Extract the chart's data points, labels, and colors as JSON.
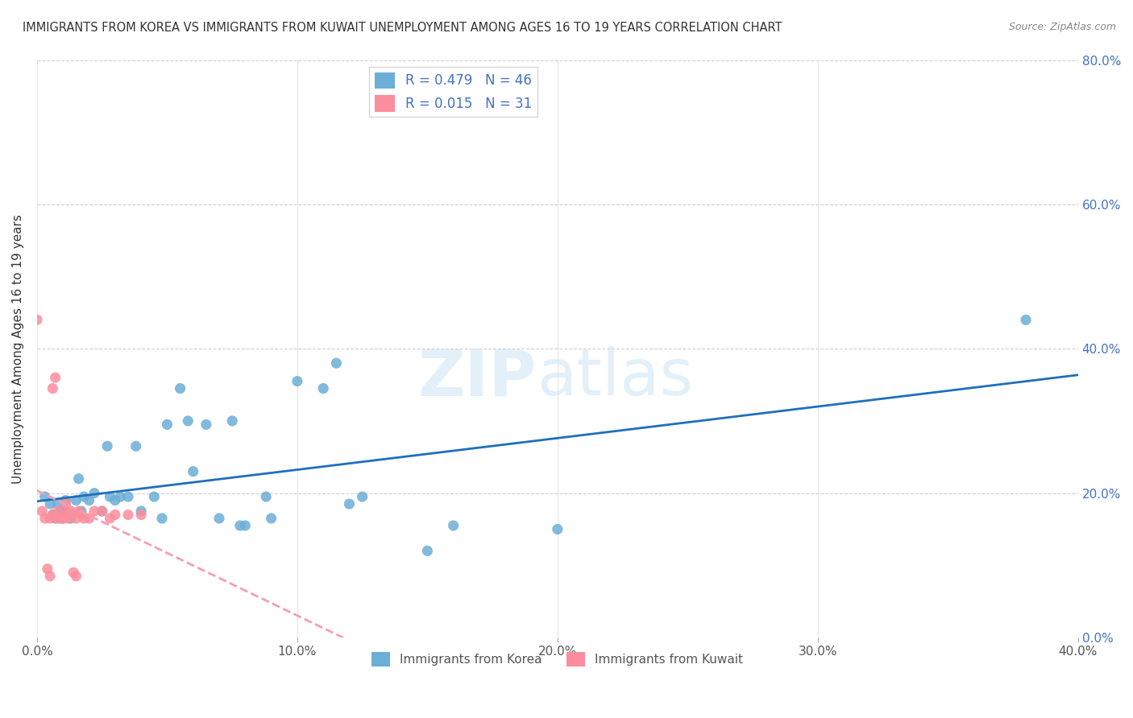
{
  "title": "IMMIGRANTS FROM KOREA VS IMMIGRANTS FROM KUWAIT UNEMPLOYMENT AMONG AGES 16 TO 19 YEARS CORRELATION CHART",
  "source": "Source: ZipAtlas.com",
  "ylabel_left": "Unemployment Among Ages 16 to 19 years",
  "xlim": [
    0.0,
    0.4
  ],
  "ylim": [
    0.0,
    0.8
  ],
  "legend_korea_R": "0.479",
  "legend_korea_N": "46",
  "legend_kuwait_R": "0.015",
  "legend_kuwait_N": "31",
  "korea_color": "#6baed6",
  "kuwait_color": "#fc8d9c",
  "korea_line_color": "#1f6fbd",
  "kuwait_line_color": "#f4a0b0",
  "korea_x": [
    0.003,
    0.005,
    0.006,
    0.007,
    0.008,
    0.009,
    0.01,
    0.011,
    0.012,
    0.013,
    0.015,
    0.016,
    0.017,
    0.018,
    0.02,
    0.022,
    0.025,
    0.027,
    0.028,
    0.03,
    0.032,
    0.035,
    0.038,
    0.04,
    0.045,
    0.048,
    0.05,
    0.055,
    0.058,
    0.06,
    0.065,
    0.07,
    0.075,
    0.078,
    0.08,
    0.088,
    0.09,
    0.1,
    0.11,
    0.115,
    0.12,
    0.125,
    0.15,
    0.16,
    0.2,
    0.38
  ],
  "korea_y": [
    0.195,
    0.185,
    0.17,
    0.165,
    0.185,
    0.175,
    0.175,
    0.19,
    0.175,
    0.165,
    0.19,
    0.22,
    0.175,
    0.195,
    0.19,
    0.2,
    0.175,
    0.265,
    0.195,
    0.19,
    0.195,
    0.195,
    0.265,
    0.175,
    0.195,
    0.165,
    0.295,
    0.345,
    0.3,
    0.23,
    0.295,
    0.165,
    0.3,
    0.155,
    0.155,
    0.195,
    0.165,
    0.355,
    0.345,
    0.38,
    0.185,
    0.195,
    0.12,
    0.155,
    0.15,
    0.44
  ],
  "kuwait_x": [
    0.002,
    0.003,
    0.004,
    0.005,
    0.005,
    0.006,
    0.006,
    0.007,
    0.008,
    0.008,
    0.009,
    0.01,
    0.01,
    0.011,
    0.012,
    0.012,
    0.013,
    0.014,
    0.015,
    0.015,
    0.016,
    0.017,
    0.018,
    0.02,
    0.022,
    0.025,
    0.028,
    0.03,
    0.035,
    0.04,
    0.0
  ],
  "kuwait_y": [
    0.175,
    0.165,
    0.095,
    0.085,
    0.165,
    0.17,
    0.345,
    0.36,
    0.165,
    0.175,
    0.165,
    0.165,
    0.165,
    0.185,
    0.165,
    0.175,
    0.175,
    0.09,
    0.085,
    0.165,
    0.175,
    0.17,
    0.165,
    0.165,
    0.175,
    0.175,
    0.165,
    0.17,
    0.17,
    0.17,
    0.44
  ]
}
